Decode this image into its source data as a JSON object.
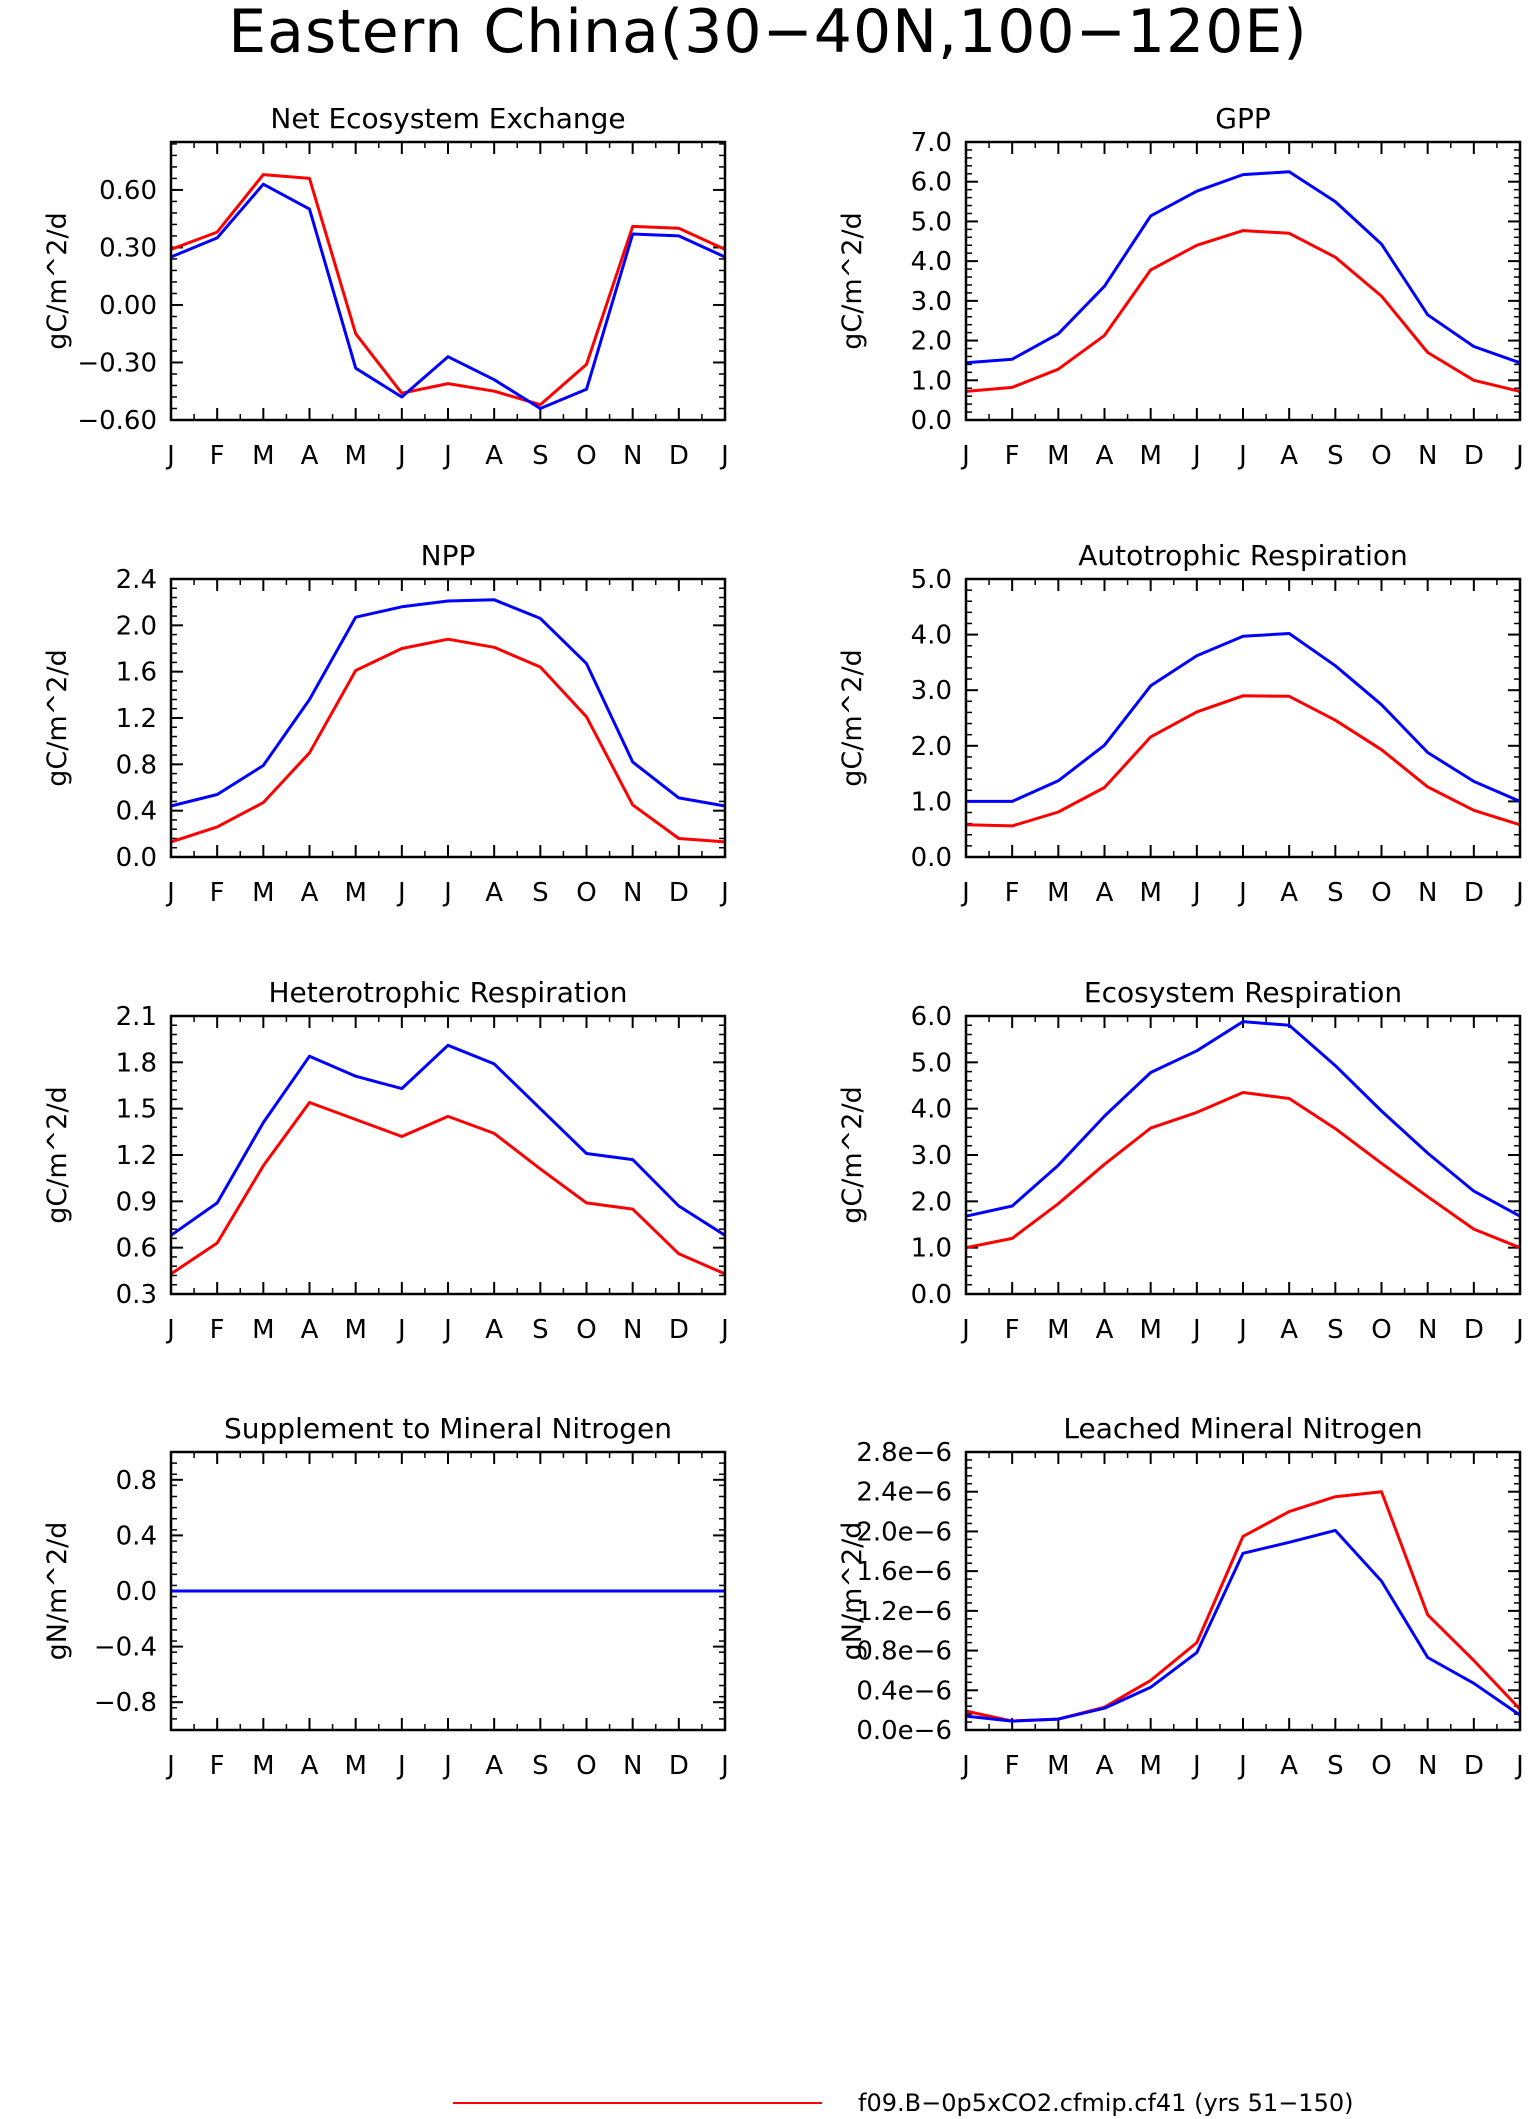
{
  "figure": {
    "title": "Eastern China(30−40N,100−120E)"
  },
  "legend": {
    "entries": [
      {
        "label": "f09.B−0p5xCO2.cfmip.cf41 (yrs 51−150)",
        "color": "#ff0000"
      }
    ]
  },
  "colors": {
    "red": "#ff0000",
    "blue": "#0000ff",
    "axis": "#000000"
  },
  "chart_data": [
    {
      "type": "line",
      "title": "Net Ecosystem Exchange",
      "ylabel": "gC/m^2/d",
      "x": [
        "J",
        "F",
        "M",
        "A",
        "M",
        "J",
        "J",
        "A",
        "S",
        "O",
        "N",
        "D",
        "J"
      ],
      "ylim": [
        -0.6,
        0.85
      ],
      "yticks": [
        -0.6,
        -0.3,
        0.0,
        0.3,
        0.6
      ],
      "ytick_labels": [
        "−0.60",
        "−0.30",
        "0.00",
        "0.30",
        "0.60"
      ],
      "series": [
        {
          "color": "#ff0000",
          "values": [
            0.29,
            0.38,
            0.68,
            0.66,
            -0.15,
            -0.46,
            -0.41,
            -0.45,
            -0.52,
            -0.31,
            0.41,
            0.4,
            0.29
          ]
        },
        {
          "color": "#0000ff",
          "values": [
            0.25,
            0.35,
            0.63,
            0.5,
            -0.33,
            -0.48,
            -0.27,
            -0.39,
            -0.54,
            -0.44,
            0.37,
            0.36,
            0.25
          ]
        }
      ]
    },
    {
      "type": "line",
      "title": "GPP",
      "ylabel": "gC/m^2/d",
      "x": [
        "J",
        "F",
        "M",
        "A",
        "M",
        "J",
        "J",
        "A",
        "S",
        "O",
        "N",
        "D",
        "J"
      ],
      "ylim": [
        0,
        7
      ],
      "yticks": [
        0,
        1,
        2,
        3,
        4,
        5,
        6,
        7
      ],
      "ytick_labels": [
        "0.0",
        "1.0",
        "2.0",
        "3.0",
        "4.0",
        "5.0",
        "6.0",
        "7.0"
      ],
      "series": [
        {
          "color": "#ff0000",
          "values": [
            0.72,
            0.82,
            1.28,
            2.13,
            3.78,
            4.4,
            4.77,
            4.7,
            4.1,
            3.12,
            1.7,
            1.0,
            0.72
          ]
        },
        {
          "color": "#0000ff",
          "values": [
            1.44,
            1.53,
            2.17,
            3.37,
            5.14,
            5.76,
            6.18,
            6.25,
            5.5,
            4.43,
            2.65,
            1.85,
            1.44
          ]
        }
      ]
    },
    {
      "type": "line",
      "title": "NPP",
      "ylabel": "gC/m^2/d",
      "x": [
        "J",
        "F",
        "M",
        "A",
        "M",
        "J",
        "J",
        "A",
        "S",
        "O",
        "N",
        "D",
        "J"
      ],
      "ylim": [
        0,
        2.4
      ],
      "yticks": [
        0,
        0.4,
        0.8,
        1.2,
        1.6,
        2.0,
        2.4
      ],
      "ytick_labels": [
        "0.0",
        "0.4",
        "0.8",
        "1.2",
        "1.6",
        "2.0",
        "2.4"
      ],
      "series": [
        {
          "color": "#ff0000",
          "values": [
            0.13,
            0.26,
            0.47,
            0.9,
            1.61,
            1.8,
            1.88,
            1.81,
            1.64,
            1.21,
            0.45,
            0.16,
            0.13
          ]
        },
        {
          "color": "#0000ff",
          "values": [
            0.44,
            0.54,
            0.79,
            1.36,
            2.07,
            2.16,
            2.21,
            2.22,
            2.06,
            1.67,
            0.82,
            0.51,
            0.44
          ]
        }
      ]
    },
    {
      "type": "line",
      "title": "Autotrophic Respiration",
      "ylabel": "gC/m^2/d",
      "x": [
        "J",
        "F",
        "M",
        "A",
        "M",
        "J",
        "J",
        "A",
        "S",
        "O",
        "N",
        "D",
        "J"
      ],
      "ylim": [
        0,
        5
      ],
      "yticks": [
        0,
        1,
        2,
        3,
        4,
        5
      ],
      "ytick_labels": [
        "0.0",
        "1.0",
        "2.0",
        "3.0",
        "4.0",
        "5.0"
      ],
      "series": [
        {
          "color": "#ff0000",
          "values": [
            0.58,
            0.56,
            0.81,
            1.25,
            2.16,
            2.61,
            2.9,
            2.89,
            2.46,
            1.93,
            1.26,
            0.84,
            0.58
          ]
        },
        {
          "color": "#0000ff",
          "values": [
            1.0,
            1.0,
            1.37,
            2.01,
            3.08,
            3.62,
            3.97,
            4.02,
            3.44,
            2.74,
            1.88,
            1.36,
            1.0
          ]
        }
      ]
    },
    {
      "type": "line",
      "title": "Heterotrophic Respiration",
      "ylabel": "gC/m^2/d",
      "x": [
        "J",
        "F",
        "M",
        "A",
        "M",
        "J",
        "J",
        "A",
        "S",
        "O",
        "N",
        "D",
        "J"
      ],
      "ylim": [
        0.3,
        2.1
      ],
      "yticks": [
        0.3,
        0.6,
        0.9,
        1.2,
        1.5,
        1.8,
        2.1
      ],
      "ytick_labels": [
        "0.3",
        "0.6",
        "0.9",
        "1.2",
        "1.5",
        "1.8",
        "2.1"
      ],
      "series": [
        {
          "color": "#ff0000",
          "values": [
            0.43,
            0.63,
            1.13,
            1.54,
            1.43,
            1.32,
            1.45,
            1.34,
            1.11,
            0.89,
            0.85,
            0.56,
            0.43
          ]
        },
        {
          "color": "#0000ff",
          "values": [
            0.68,
            0.89,
            1.41,
            1.84,
            1.71,
            1.63,
            1.91,
            1.79,
            1.5,
            1.21,
            1.17,
            0.87,
            0.68
          ]
        }
      ]
    },
    {
      "type": "line",
      "title": "Ecosystem Respiration",
      "ylabel": "gC/m^2/d",
      "x": [
        "J",
        "F",
        "M",
        "A",
        "M",
        "J",
        "J",
        "A",
        "S",
        "O",
        "N",
        "D",
        "J"
      ],
      "ylim": [
        0,
        6
      ],
      "yticks": [
        0,
        1,
        2,
        3,
        4,
        5,
        6
      ],
      "ytick_labels": [
        "0.0",
        "1.0",
        "2.0",
        "3.0",
        "4.0",
        "5.0",
        "6.0"
      ],
      "series": [
        {
          "color": "#ff0000",
          "values": [
            1.0,
            1.2,
            1.95,
            2.8,
            3.58,
            3.92,
            4.35,
            4.22,
            3.57,
            2.82,
            2.1,
            1.4,
            1.0
          ]
        },
        {
          "color": "#0000ff",
          "values": [
            1.68,
            1.9,
            2.78,
            3.84,
            4.78,
            5.25,
            5.88,
            5.8,
            4.93,
            3.95,
            3.04,
            2.22,
            1.68
          ]
        }
      ]
    },
    {
      "type": "line",
      "title": "Supplement to Mineral Nitrogen",
      "ylabel": "gN/m^2/d",
      "x": [
        "J",
        "F",
        "M",
        "A",
        "M",
        "J",
        "J",
        "A",
        "S",
        "O",
        "N",
        "D",
        "J"
      ],
      "ylim": [
        -1.0,
        1.0
      ],
      "yticks": [
        -0.8,
        -0.4,
        0.0,
        0.4,
        0.8
      ],
      "ytick_labels": [
        "−0.8",
        "−0.4",
        "0.0",
        "0.4",
        "0.8"
      ],
      "series": [
        {
          "color": "#ff0000",
          "values": [
            0,
            0,
            0,
            0,
            0,
            0,
            0,
            0,
            0,
            0,
            0,
            0,
            0
          ]
        },
        {
          "color": "#0000ff",
          "values": [
            0,
            0,
            0,
            0,
            0,
            0,
            0,
            0,
            0,
            0,
            0,
            0,
            0
          ]
        }
      ]
    },
    {
      "type": "line",
      "title": "Leached Mineral Nitrogen",
      "ylabel": "gN/m^2/d",
      "x": [
        "J",
        "F",
        "M",
        "A",
        "M",
        "J",
        "J",
        "A",
        "S",
        "O",
        "N",
        "D",
        "J"
      ],
      "ylim": [
        0,
        2.8e-06
      ],
      "yticks": [
        0,
        4e-07,
        8e-07,
        1.2e-06,
        1.6e-06,
        2e-06,
        2.4e-06,
        2.8e-06
      ],
      "ytick_labels": [
        "0.0e−6",
        "0.4e−6",
        "0.8e−6",
        "1.2e−6",
        "1.6e−6",
        "2.0e−6",
        "2.4e−6",
        "2.8e−6"
      ],
      "series": [
        {
          "color": "#ff0000",
          "values": [
            1.9e-07,
            9e-08,
            1.1e-07,
            2.3e-07,
            5e-07,
            8.8e-07,
            1.95e-06,
            2.2e-06,
            2.35e-06,
            2.4e-06,
            1.16e-06,
            7e-07,
            2.1e-07
          ]
        },
        {
          "color": "#0000ff",
          "values": [
            1.4e-07,
            9e-08,
            1.1e-07,
            2.2e-07,
            4.3e-07,
            7.8e-07,
            1.78e-06,
            1.89e-06,
            2.01e-06,
            1.5e-06,
            7.3e-07,
            4.7e-07,
            1.5e-07
          ]
        }
      ]
    }
  ]
}
